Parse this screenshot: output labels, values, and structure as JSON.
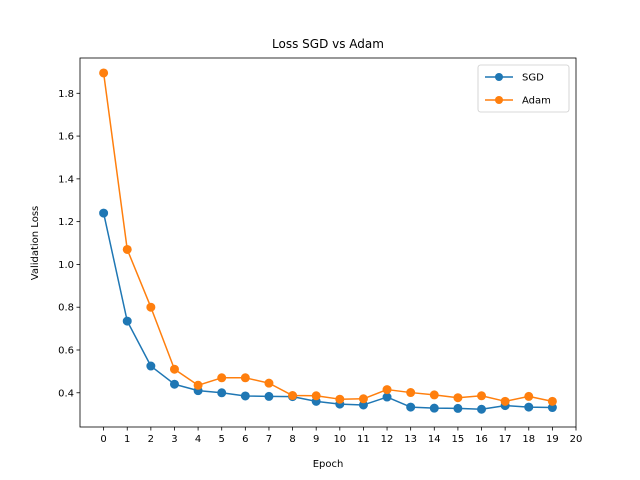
{
  "chart_data": {
    "type": "line",
    "title": "Loss SGD vs Adam",
    "xlabel": "Epoch",
    "ylabel": "Validation Loss",
    "x": [
      0,
      1,
      2,
      3,
      4,
      5,
      6,
      7,
      8,
      9,
      10,
      11,
      12,
      13,
      14,
      15,
      16,
      17,
      18,
      19
    ],
    "xticks": [
      0,
      1,
      2,
      3,
      4,
      5,
      6,
      7,
      8,
      9,
      10,
      11,
      12,
      13,
      14,
      15,
      16,
      17,
      18,
      19,
      20
    ],
    "yticks": [
      0.4,
      0.6,
      0.8,
      1.0,
      1.2,
      1.4,
      1.6,
      1.8
    ],
    "ytick_labels": [
      "0.4",
      "0.6",
      "0.8",
      "1.0",
      "1.2",
      "1.4",
      "1.6",
      "1.8"
    ],
    "xlim": [
      -1,
      20
    ],
    "ylim": [
      0.24,
      1.965
    ],
    "grid": false,
    "legend_position": "top-right",
    "series": [
      {
        "name": "SGD",
        "color": "#1f77b4",
        "values": [
          1.24,
          0.735,
          0.525,
          0.44,
          0.41,
          0.4,
          0.385,
          0.383,
          0.382,
          0.36,
          0.347,
          0.343,
          0.38,
          0.333,
          0.328,
          0.327,
          0.323,
          0.34,
          0.333,
          0.331
        ]
      },
      {
        "name": "Adam",
        "color": "#ff7f0e",
        "values": [
          1.895,
          1.07,
          0.8,
          0.51,
          0.435,
          0.47,
          0.47,
          0.445,
          0.387,
          0.386,
          0.37,
          0.372,
          0.415,
          0.401,
          0.39,
          0.377,
          0.386,
          0.36,
          0.383,
          0.36
        ]
      }
    ]
  }
}
